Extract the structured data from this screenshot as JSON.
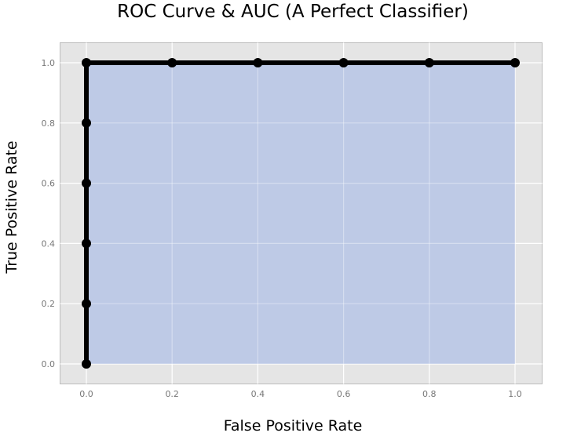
{
  "chart_data": {
    "type": "line",
    "title": "ROC Curve & AUC (A Perfect Classifier)",
    "xlabel": "False Positive Rate",
    "ylabel": "True Positive Rate",
    "xlim": [
      -0.06,
      1.06
    ],
    "ylim": [
      -0.066,
      1.066
    ],
    "grid": true,
    "legend": null,
    "x_ticks": [
      "0.0",
      "0.2",
      "0.4",
      "0.6",
      "0.8",
      "1.0"
    ],
    "y_ticks": [
      "0.0",
      "0.2",
      "0.4",
      "0.6",
      "0.8",
      "1.0"
    ],
    "series": [
      {
        "name": "ROC curve",
        "x": [
          0.0,
          0.0,
          0.0,
          0.0,
          0.0,
          0.0,
          0.2,
          0.4,
          0.6,
          0.8,
          1.0
        ],
        "y": [
          0.0,
          0.2,
          0.4,
          0.6,
          0.8,
          1.0,
          1.0,
          1.0,
          1.0,
          1.0,
          1.0
        ],
        "color": "#000000",
        "marker": "circle"
      }
    ],
    "area": {
      "name": "AUC",
      "x_range": [
        0.0,
        1.0
      ],
      "y_range": [
        0.0,
        1.0
      ],
      "value": 1.0,
      "color": "#bcc8e6"
    }
  },
  "colors": {
    "plot_background": "#e5e5e5",
    "grid": "#ffffff",
    "auc_fill": "#bcc8e6",
    "line": "#000000",
    "tick_label": "#777777",
    "frame": "#bcbcbc"
  }
}
